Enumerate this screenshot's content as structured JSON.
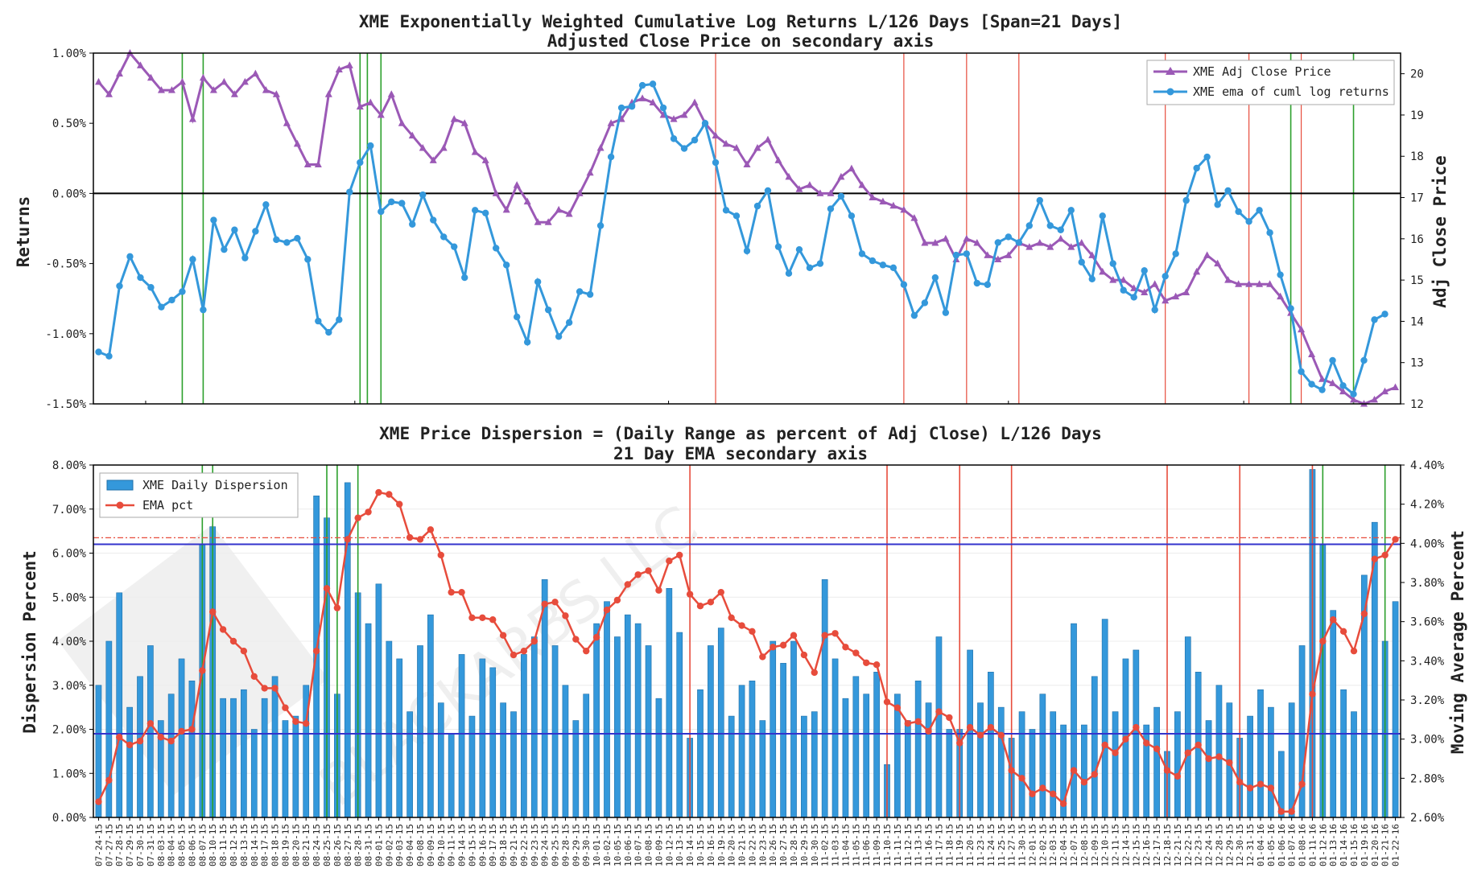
{
  "chart_data": [
    {
      "type": "line",
      "title": "XME Exponentially Weighted Cumulative Log Returns L/126 Days [Span=21 Days]",
      "subtitle": "Adjusted Close Price on secondary axis",
      "ylabel": "Returns",
      "y2label": "Adj Close Price",
      "ylim": [
        -1.5,
        1.0
      ],
      "y2lim": [
        12,
        20.5
      ],
      "yticks": [
        "1.00%",
        "0.50%",
        "0.00%",
        "-0.50%",
        "-1.00%",
        "-1.50%"
      ],
      "y2ticks": [
        "20",
        "19",
        "18",
        "17",
        "16",
        "15",
        "14",
        "13",
        "12"
      ],
      "legend_position": "top-right",
      "series": [
        {
          "name": "XME Adj Close Price",
          "axis": "secondary",
          "color": "#9b59b6",
          "marker": "triangle",
          "values": [
            19.8,
            19.5,
            20.0,
            20.5,
            20.2,
            19.9,
            19.6,
            19.6,
            19.8,
            18.9,
            19.9,
            19.6,
            19.8,
            19.5,
            19.8,
            20.0,
            19.6,
            19.5,
            18.8,
            18.3,
            17.8,
            17.8,
            19.5,
            20.1,
            20.2,
            19.2,
            19.3,
            19.0,
            19.5,
            18.8,
            18.5,
            18.2,
            17.9,
            18.2,
            18.9,
            18.8,
            18.1,
            17.9,
            17.1,
            16.7,
            17.3,
            16.9,
            16.4,
            16.4,
            16.7,
            16.6,
            17.1,
            17.6,
            18.2,
            18.8,
            18.9,
            19.3,
            19.4,
            19.3,
            19.0,
            18.9,
            19.0,
            19.3,
            18.8,
            18.5,
            18.3,
            18.2,
            17.8,
            18.2,
            18.4,
            17.9,
            17.5,
            17.2,
            17.3,
            17.1,
            17.1,
            17.5,
            17.7,
            17.3,
            17.0,
            16.9,
            16.8,
            16.7,
            16.5,
            15.9,
            15.9,
            16.0,
            15.5,
            16.0,
            15.9,
            15.6,
            15.5,
            15.6,
            15.9,
            15.8,
            15.9,
            15.8,
            16.0,
            15.8,
            15.9,
            15.6,
            15.2,
            15.0,
            15.0,
            14.8,
            14.7,
            14.9,
            14.5,
            14.6,
            14.7,
            15.2,
            15.6,
            15.4,
            15.0,
            14.9,
            14.9,
            14.9,
            14.9,
            14.6,
            14.2,
            13.8,
            13.2,
            12.6,
            12.5,
            12.3,
            12.1,
            12.0,
            12.1,
            12.3,
            12.4
          ]
        },
        {
          "name": "XME ema of cuml log returns",
          "axis": "primary",
          "color": "#3498db",
          "marker": "circle",
          "values": [
            -1.13,
            -1.16,
            -0.66,
            -0.45,
            -0.6,
            -0.67,
            -0.81,
            -0.76,
            -0.7,
            -0.47,
            -0.83,
            -0.19,
            -0.4,
            -0.26,
            -0.46,
            -0.27,
            -0.08,
            -0.33,
            -0.35,
            -0.32,
            -0.47,
            -0.91,
            -0.99,
            -0.9,
            0.01,
            0.22,
            0.34,
            -0.13,
            -0.06,
            -0.07,
            -0.22,
            -0.01,
            -0.19,
            -0.31,
            -0.38,
            -0.6,
            -0.12,
            -0.14,
            -0.39,
            -0.51,
            -0.88,
            -1.06,
            -0.63,
            -0.83,
            -1.02,
            -0.92,
            -0.7,
            -0.72,
            -0.23,
            0.26,
            0.61,
            0.62,
            0.77,
            0.78,
            0.61,
            0.39,
            0.32,
            0.38,
            0.5,
            0.22,
            -0.12,
            -0.16,
            -0.41,
            -0.09,
            0.02,
            -0.38,
            -0.57,
            -0.4,
            -0.53,
            -0.5,
            -0.11,
            -0.02,
            -0.16,
            -0.43,
            -0.48,
            -0.51,
            -0.53,
            -0.65,
            -0.87,
            -0.78,
            -0.6,
            -0.85,
            -0.44,
            -0.43,
            -0.64,
            -0.65,
            -0.35,
            -0.31,
            -0.35,
            -0.23,
            -0.05,
            -0.23,
            -0.26,
            -0.12,
            -0.49,
            -0.61,
            -0.16,
            -0.5,
            -0.69,
            -0.74,
            -0.55,
            -0.83,
            -0.59,
            -0.43,
            -0.05,
            0.18,
            0.26,
            -0.08,
            0.02,
            -0.13,
            -0.2,
            -0.12,
            -0.28,
            -0.58,
            -0.82,
            -1.27,
            -1.36,
            -1.4,
            -1.19,
            -1.37,
            -1.43,
            -1.19,
            -0.9,
            -0.86
          ]
        }
      ],
      "x_event_lines_green": [
        8.0,
        10.0,
        25.0,
        25.7,
        27.0,
        114.0,
        120.0
      ],
      "x_event_lines_red": [
        59.0,
        77.0,
        83.0,
        88.0,
        102.0,
        110.0,
        115.0
      ]
    },
    {
      "type": "bar",
      "title": "XME Price Dispersion = (Daily Range as percent of Adj Close) L/126 Days",
      "subtitle": "21 Day EMA secondary axis",
      "ylabel": "Dispersion Percent",
      "y2label": "Moving Average Percent",
      "ylim": [
        0,
        8
      ],
      "y2lim": [
        2.6,
        4.4
      ],
      "yticks": [
        "8.00%",
        "7.00%",
        "6.00%",
        "5.00%",
        "4.00%",
        "3.00%",
        "2.00%",
        "1.00%",
        "0.00%"
      ],
      "y2ticks": [
        "4.40%",
        "4.20%",
        "4.00%",
        "3.80%",
        "3.60%",
        "3.40%",
        "3.20%",
        "3.00%",
        "2.80%",
        "2.60%"
      ],
      "legend_position": "top-left",
      "categories": [
        "07-24-15",
        "07-27-15",
        "07-28-15",
        "07-29-15",
        "07-30-15",
        "07-31-15",
        "08-03-15",
        "08-04-15",
        "08-05-15",
        "08-06-15",
        "08-07-15",
        "08-10-15",
        "08-11-15",
        "08-12-15",
        "08-13-15",
        "08-14-15",
        "08-17-15",
        "08-18-15",
        "08-19-15",
        "08-20-15",
        "08-21-15",
        "08-24-15",
        "08-25-15",
        "08-26-15",
        "08-27-15",
        "08-28-15",
        "08-31-15",
        "09-01-15",
        "09-02-15",
        "09-03-15",
        "09-04-15",
        "09-08-15",
        "09-09-15",
        "09-10-15",
        "09-11-15",
        "09-14-15",
        "09-15-15",
        "09-16-15",
        "09-17-15",
        "09-18-15",
        "09-21-15",
        "09-22-15",
        "09-23-15",
        "09-24-15",
        "09-25-15",
        "09-28-15",
        "09-29-15",
        "09-30-15",
        "10-01-15",
        "10-02-15",
        "10-05-15",
        "10-06-15",
        "10-07-15",
        "10-08-15",
        "10-09-15",
        "10-12-15",
        "10-13-15",
        "10-14-15",
        "10-15-15",
        "10-16-15",
        "10-19-15",
        "10-20-15",
        "10-21-15",
        "10-22-15",
        "10-23-15",
        "10-26-15",
        "10-27-15",
        "10-28-15",
        "10-29-15",
        "10-30-15",
        "11-02-15",
        "11-03-15",
        "11-04-15",
        "11-05-15",
        "11-06-15",
        "11-09-15",
        "11-10-15",
        "11-11-15",
        "11-12-15",
        "11-13-15",
        "11-16-15",
        "11-17-15",
        "11-18-15",
        "11-19-15",
        "11-20-15",
        "11-23-15",
        "11-24-15",
        "11-25-15",
        "11-27-15",
        "11-30-15",
        "12-01-15",
        "12-02-15",
        "12-03-15",
        "12-04-15",
        "12-07-15",
        "12-08-15",
        "12-09-15",
        "12-10-15",
        "12-11-15",
        "12-14-15",
        "12-15-15",
        "12-16-15",
        "12-17-15",
        "12-18-15",
        "12-21-15",
        "12-22-15",
        "12-23-15",
        "12-24-15",
        "12-28-15",
        "12-29-15",
        "12-30-15",
        "12-31-15",
        "01-04-16",
        "01-05-16",
        "01-06-16",
        "01-07-16",
        "01-08-16",
        "01-11-16",
        "01-12-16",
        "01-13-16",
        "01-14-16",
        "01-15-16",
        "01-19-16",
        "01-20-16",
        "01-21-16",
        "01-22-16"
      ],
      "series": [
        {
          "name": "XME Daily Dispersion",
          "axis": "primary",
          "color": "#3498db",
          "values": [
            3.0,
            4.0,
            5.1,
            2.5,
            3.2,
            3.9,
            2.2,
            2.8,
            3.6,
            3.1,
            6.2,
            6.6,
            2.7,
            2.7,
            2.9,
            2.0,
            2.7,
            3.2,
            2.2,
            2.3,
            3.0,
            7.3,
            6.8,
            2.8,
            7.6,
            5.1,
            4.4,
            5.3,
            4.0,
            3.6,
            2.4,
            3.9,
            4.6,
            2.6,
            1.9,
            3.7,
            2.3,
            3.6,
            3.4,
            2.6,
            2.4,
            3.7,
            4.1,
            5.4,
            3.9,
            3.0,
            2.2,
            2.8,
            4.4,
            4.9,
            4.1,
            4.6,
            4.4,
            3.9,
            2.7,
            5.2,
            4.2,
            1.8,
            2.9,
            3.9,
            4.3,
            2.3,
            3.0,
            3.1,
            2.2,
            4.0,
            3.5,
            4.0,
            2.3,
            2.4,
            5.4,
            3.6,
            2.7,
            3.2,
            2.8,
            3.3,
            1.2,
            2.8,
            2.2,
            3.1,
            2.6,
            4.1,
            2.0,
            2.0,
            3.8,
            2.6,
            3.3,
            2.5,
            1.8,
            2.4,
            2.0,
            2.8,
            2.4,
            2.1,
            4.4,
            2.1,
            3.2,
            4.5,
            2.4,
            3.6,
            3.8,
            2.1,
            2.5,
            1.5,
            2.4,
            4.1,
            3.3,
            2.2,
            3.0,
            2.6,
            1.8,
            2.3,
            2.9,
            2.5,
            1.5,
            2.6,
            3.9,
            7.9,
            6.2,
            4.7,
            2.9,
            2.4,
            5.5,
            6.7,
            4.0,
            4.9
          ]
        },
        {
          "name": "EMA pct",
          "axis": "secondary",
          "color": "#e74c3c",
          "marker": "circle",
          "values": [
            2.68,
            2.79,
            3.01,
            2.97,
            2.99,
            3.08,
            3.01,
            2.99,
            3.04,
            3.05,
            3.35,
            3.65,
            3.56,
            3.5,
            3.45,
            3.32,
            3.26,
            3.26,
            3.16,
            3.09,
            3.08,
            3.45,
            3.77,
            3.67,
            4.02,
            4.13,
            4.16,
            4.26,
            4.25,
            4.2,
            4.03,
            4.02,
            4.07,
            3.94,
            3.75,
            3.75,
            3.62,
            3.62,
            3.61,
            3.53,
            3.43,
            3.45,
            3.5,
            3.69,
            3.7,
            3.63,
            3.51,
            3.45,
            3.52,
            3.66,
            3.71,
            3.79,
            3.84,
            3.86,
            3.76,
            3.91,
            3.94,
            3.74,
            3.68,
            3.7,
            3.75,
            3.62,
            3.58,
            3.55,
            3.42,
            3.47,
            3.48,
            3.53,
            3.43,
            3.34,
            3.53,
            3.54,
            3.47,
            3.44,
            3.39,
            3.38,
            3.19,
            3.16,
            3.08,
            3.09,
            3.04,
            3.14,
            3.11,
            2.98,
            3.06,
            3.02,
            3.06,
            3.02,
            2.84,
            2.8,
            2.72,
            2.75,
            2.72,
            2.67,
            2.84,
            2.78,
            2.82,
            2.97,
            2.93,
            3.0,
            3.06,
            2.98,
            2.95,
            2.84,
            2.81,
            2.93,
            2.97,
            2.9,
            2.91,
            2.88,
            2.78,
            2.75,
            2.77,
            2.75,
            2.63,
            2.63,
            2.77,
            3.23,
            3.5,
            3.61,
            3.55,
            3.45,
            3.64,
            3.92,
            3.94,
            4.02
          ]
        }
      ],
      "hlines": [
        {
          "value": 6.2,
          "axis": "primary",
          "color": "#3333cc",
          "style": "solid"
        },
        {
          "value": 1.9,
          "axis": "primary",
          "color": "#3333cc",
          "style": "solid"
        },
        {
          "value": 6.35,
          "axis": "primary",
          "color": "#e74c3c",
          "style": "dashdot"
        }
      ],
      "x_event_lines_green": [
        10.0,
        11.0,
        22.0,
        23.0,
        25.0,
        118.0,
        124.0
      ],
      "x_event_lines_red": [
        57.0,
        76.0,
        83.0,
        88.0,
        103.0,
        110.0,
        117.0
      ]
    }
  ],
  "watermark": "BLACKARBS LLC"
}
